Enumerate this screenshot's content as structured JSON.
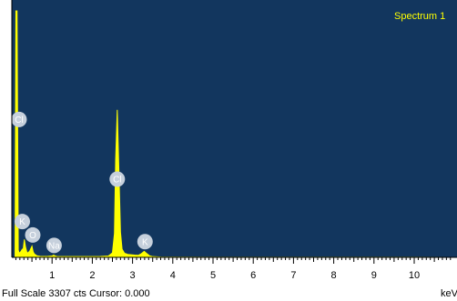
{
  "chart_data": {
    "type": "line",
    "title": "Spectrum 1",
    "xlabel": "keV",
    "ylabel": "",
    "xlim": [
      0,
      10.9
    ],
    "ylim": [
      0,
      3307
    ],
    "x_ticks": [
      1,
      2,
      3,
      4,
      5,
      6,
      7,
      8,
      9,
      10
    ],
    "grid": false,
    "series": [
      {
        "name": "Spectrum 1",
        "x": [
          0.0,
          0.08,
          0.1,
          0.13,
          0.16,
          0.18,
          0.22,
          0.26,
          0.28,
          0.31,
          0.34,
          0.38,
          0.44,
          0.5,
          0.53,
          0.56,
          0.62,
          0.7,
          0.8,
          0.9,
          1.0,
          1.04,
          1.08,
          1.12,
          1.2,
          1.4,
          1.6,
          1.8,
          2.0,
          2.2,
          2.4,
          2.5,
          2.55,
          2.58,
          2.62,
          2.66,
          2.7,
          2.74,
          2.8,
          2.88,
          2.96,
          3.05,
          3.15,
          3.22,
          3.29,
          3.36,
          3.42,
          3.5,
          3.7,
          4.0,
          5.0,
          6.0,
          7.0,
          8.0,
          9.0,
          10.0,
          10.9
        ],
        "y": [
          0,
          0,
          3307,
          3307,
          100,
          55,
          75,
          110,
          95,
          240,
          140,
          55,
          80,
          150,
          75,
          45,
          22,
          14,
          12,
          14,
          18,
          30,
          18,
          12,
          10,
          10,
          10,
          10,
          10,
          12,
          18,
          60,
          320,
          1310,
          1980,
          1180,
          340,
          110,
          55,
          40,
          35,
          30,
          28,
          50,
          80,
          48,
          22,
          10,
          5,
          3,
          2,
          2,
          2,
          1,
          1,
          1,
          0
        ]
      }
    ],
    "peaks": [
      {
        "element": "Cl",
        "x": 0.18,
        "y": 1850
      },
      {
        "element": "K",
        "x": 0.26,
        "y": 480
      },
      {
        "element": "O",
        "x": 0.52,
        "y": 300
      },
      {
        "element": "Na",
        "x": 1.05,
        "y": 160
      },
      {
        "element": "Cl",
        "x": 2.62,
        "y": 1050
      },
      {
        "element": "K",
        "x": 3.31,
        "y": 210
      }
    ]
  },
  "footer": {
    "status": "Full Scale 3307 cts Cursor: 0.000",
    "unit": "keV"
  },
  "colors": {
    "plot_bg": "#12365e",
    "trace": "#ffff00",
    "peak_marker": "#c6d0dc",
    "title": "#ffff00"
  }
}
